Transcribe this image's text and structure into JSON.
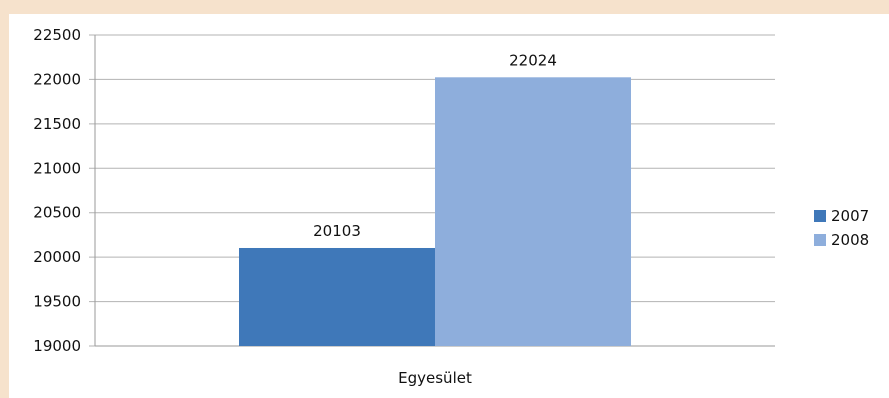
{
  "chart_data": {
    "type": "bar",
    "categories": [
      "Egyesület"
    ],
    "series": [
      {
        "name": "2007",
        "values": [
          20103
        ],
        "color": "#3f78b9"
      },
      {
        "name": "2008",
        "values": [
          22024
        ],
        "color": "#8eaedc"
      }
    ],
    "ylim": [
      19000,
      22500
    ],
    "yticks": [
      19000,
      19500,
      20000,
      20500,
      21000,
      21500,
      22000,
      22500
    ],
    "grid": true,
    "legend_position": "right",
    "data_labels": true
  }
}
